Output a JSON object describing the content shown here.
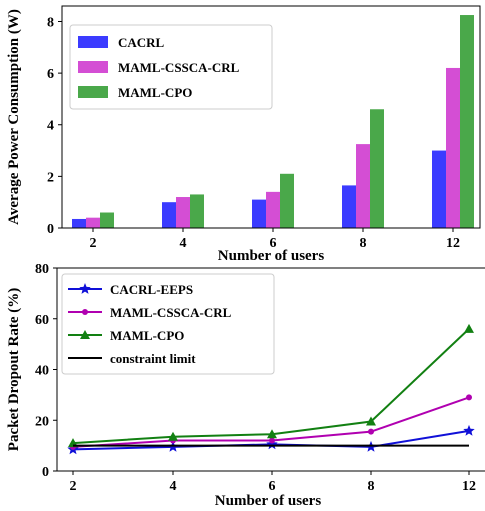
{
  "chart_data": [
    {
      "type": "bar",
      "categories": [
        "2",
        "4",
        "6",
        "8",
        "12"
      ],
      "series": [
        {
          "name": "CACRL",
          "values": [
            0.35,
            1.0,
            1.1,
            1.65,
            3.0
          ],
          "color": "#3b3bff"
        },
        {
          "name": "MAML-CSSCA-CRL",
          "values": [
            0.4,
            1.2,
            1.4,
            3.25,
            6.2
          ],
          "color": "#d44ed4"
        },
        {
          "name": "MAML-CPO",
          "values": [
            0.6,
            1.3,
            2.1,
            4.6,
            8.25
          ],
          "color": "#4aa84a"
        }
      ],
      "xlabel": "Number of users",
      "ylabel": "Average Power Consumption (W)",
      "ylim": [
        0,
        8.6
      ],
      "yticks": [
        "0",
        "2",
        "4",
        "6",
        "8"
      ],
      "legend": "top-left",
      "grid": false
    },
    {
      "type": "line",
      "categories": [
        "2",
        "4",
        "6",
        "8",
        "12"
      ],
      "series": [
        {
          "name": "CACRL-EEPS",
          "values": [
            8.5,
            9.5,
            10.5,
            9.5,
            15.8
          ],
          "color": "#1010d8",
          "marker": "star"
        },
        {
          "name": "MAML-CSSCA-CRL",
          "values": [
            9.5,
            12.0,
            12.0,
            15.5,
            29.0
          ],
          "color": "#b000b0",
          "marker": "dot"
        },
        {
          "name": "MAML-CPO",
          "values": [
            11.0,
            13.5,
            14.5,
            19.5,
            56.0
          ],
          "color": "#128012",
          "marker": "triangle"
        },
        {
          "name": "constraint limit",
          "values": [
            10,
            10,
            10,
            10,
            10
          ],
          "color": "#000000",
          "marker": "none"
        }
      ],
      "xlabel": "Number of users",
      "ylabel": "Packet Dropout Rate (%)",
      "ylim": [
        0,
        80
      ],
      "yticks": [
        "0",
        "20",
        "40",
        "60",
        "80"
      ],
      "legend": "top-left",
      "grid": false
    }
  ]
}
